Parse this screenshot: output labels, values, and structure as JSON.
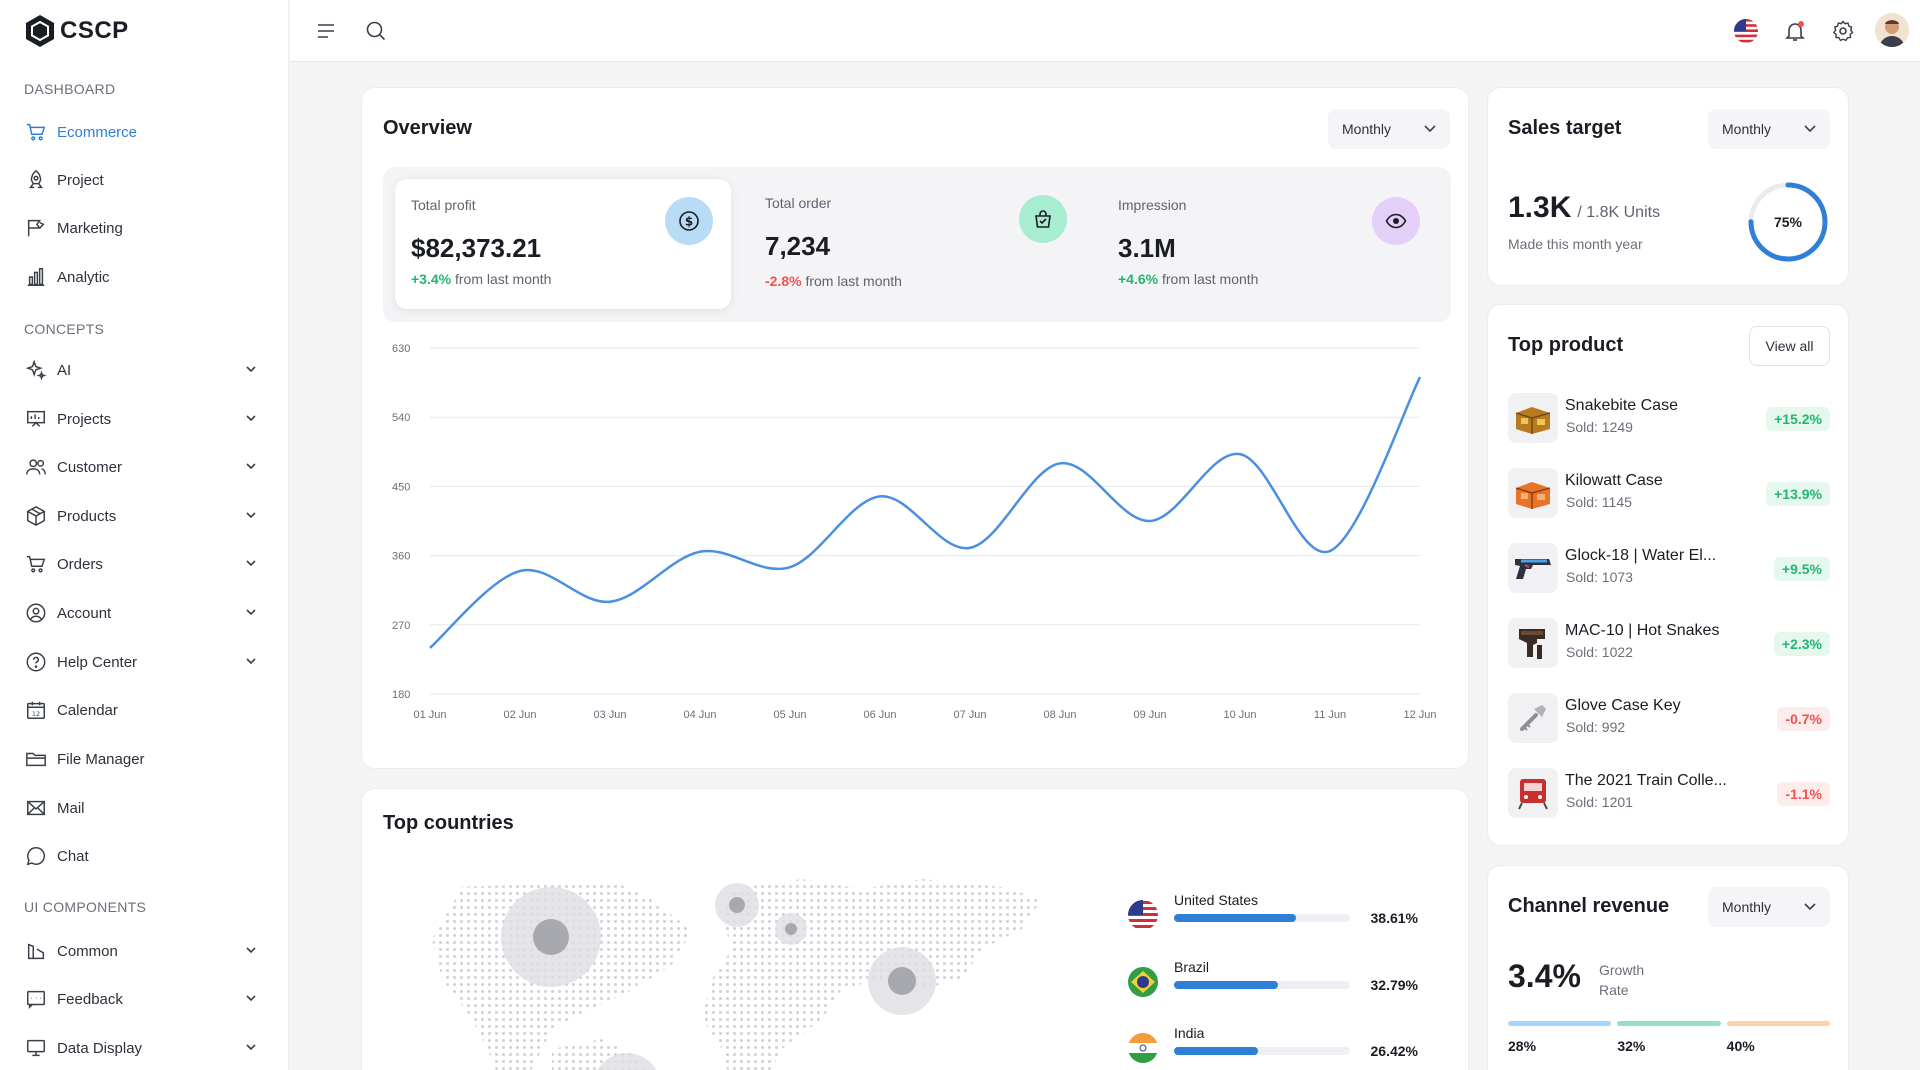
{
  "brand": {
    "name": "CSCP"
  },
  "sidebar": {
    "sections": [
      {
        "title": "DASHBOARD",
        "items": [
          {
            "label": "Ecommerce",
            "active": true
          },
          {
            "label": "Project"
          },
          {
            "label": "Marketing"
          },
          {
            "label": "Analytic"
          }
        ]
      },
      {
        "title": "CONCEPTS",
        "items": [
          {
            "label": "AI"
          },
          {
            "label": "Projects"
          },
          {
            "label": "Customer"
          },
          {
            "label": "Products"
          },
          {
            "label": "Orders"
          },
          {
            "label": "Account"
          },
          {
            "label": "Help Center"
          },
          {
            "label": "Calendar"
          },
          {
            "label": "File Manager"
          },
          {
            "label": "Mail"
          },
          {
            "label": "Chat"
          }
        ]
      },
      {
        "title": "UI COMPONENTS",
        "items": [
          {
            "label": "Common"
          },
          {
            "label": "Feedback"
          },
          {
            "label": "Data Display"
          }
        ]
      }
    ]
  },
  "overview": {
    "title": "Overview",
    "period": "Monthly",
    "stats": [
      {
        "label": "Total profit",
        "value": "$82,373.21",
        "change": "+3.4%",
        "change_suffix": "from last month",
        "trend": "up"
      },
      {
        "label": "Total order",
        "value": "7,234",
        "change": "-2.8%",
        "change_suffix": "from last month",
        "trend": "down"
      },
      {
        "label": "Impression",
        "value": "3.1M",
        "change": "+4.6%",
        "change_suffix": "from last month",
        "trend": "up"
      }
    ]
  },
  "chart_data": {
    "type": "line",
    "title": "",
    "x": [
      "01 Jun",
      "02 Jun",
      "03 Jun",
      "04 Jun",
      "05 Jun",
      "06 Jun",
      "07 Jun",
      "08 Jun",
      "09 Jun",
      "10 Jun",
      "11 Jun",
      "12 Jun"
    ],
    "series": [
      {
        "name": "Overview",
        "color": "#4a8fe0",
        "values": [
          240,
          340,
          300,
          365,
          345,
          437,
          370,
          480,
          405,
          492,
          366,
          592
        ]
      }
    ],
    "ylim": [
      180,
      630
    ],
    "yticks": [
      630,
      540,
      450,
      360,
      270,
      180
    ],
    "grid": true,
    "xlabel": "",
    "ylabel": ""
  },
  "sales_target": {
    "title": "Sales target",
    "period": "Monthly",
    "value": "1.3K",
    "target": "/ 1.8K Units",
    "caption": "Made this month year",
    "percent_label": "75%",
    "percent": 0.75
  },
  "top_product": {
    "title": "Top product",
    "view_all": "View all",
    "items": [
      {
        "name": "Snakebite Case",
        "sold": "Sold: 1249",
        "change": "+15.2%",
        "trend": "up",
        "thumb": "case-snakebite"
      },
      {
        "name": "Kilowatt Case",
        "sold": "Sold: 1145",
        "change": "+13.9%",
        "trend": "up",
        "thumb": "case-kilowatt"
      },
      {
        "name": "Glock-18 | Water El...",
        "sold": "Sold: 1073",
        "change": "+9.5%",
        "trend": "up",
        "thumb": "pistol"
      },
      {
        "name": "MAC-10 | Hot Snakes",
        "sold": "Sold: 1022",
        "change": "+2.3%",
        "trend": "up",
        "thumb": "smg"
      },
      {
        "name": "Glove Case Key",
        "sold": "Sold: 992",
        "change": "-0.7%",
        "trend": "down",
        "thumb": "key"
      },
      {
        "name": "The 2021 Train Colle...",
        "sold": "Sold: 1201",
        "change": "-1.1%",
        "trend": "down",
        "thumb": "train"
      }
    ]
  },
  "top_countries": {
    "title": "Top countries",
    "items": [
      {
        "name": "United States",
        "percent": "38.61%",
        "value": 38.61,
        "flag": "us-flag"
      },
      {
        "name": "Brazil",
        "percent": "32.79%",
        "value": 32.79,
        "flag": "brazil-flag"
      },
      {
        "name": "India",
        "percent": "26.42%",
        "value": 26.42,
        "flag": "india-flag"
      }
    ]
  },
  "channel_revenue": {
    "title": "Channel revenue",
    "period": "Monthly",
    "value": "3.4%",
    "caption_line1": "Growth",
    "caption_line2": "Rate",
    "channels": [
      {
        "percent": "28%",
        "color": "#a6d4fa"
      },
      {
        "percent": "32%",
        "color": "#8fe3c4"
      },
      {
        "percent": "40%",
        "color": "#fcd3a8"
      }
    ]
  }
}
